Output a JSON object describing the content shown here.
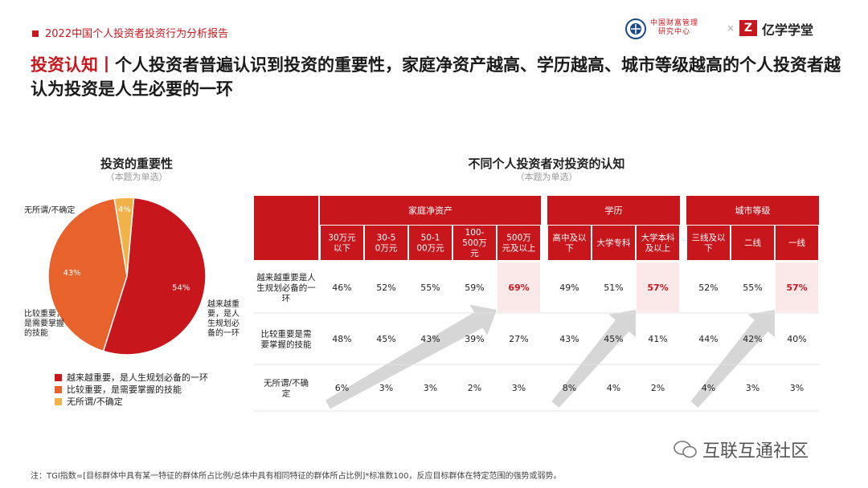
{
  "header": {
    "report_title": "2022中国个人投资者投资行为分析报告",
    "logo1_line1": "中国财富管理",
    "logo1_line2": "研究中心",
    "times": "×",
    "logo2_mark": "Z",
    "logo2_name": "亿学学堂"
  },
  "headline": {
    "tag": "投资认知丨",
    "text": "个人投资者普遍认识到投资的重要性，家庭净资产越高、学历越高、城市等级越高的个人投资者越认为投资是人生必要的一环"
  },
  "pie_section": {
    "title": "投资的重要性",
    "note": "（本题为单选）"
  },
  "table_section": {
    "title": "不同个人投资者对投资的认知",
    "note": "（本题为单选）"
  },
  "colors": {
    "red": "#c8161d",
    "orange": "#e8622c",
    "yellow": "#f2b24a",
    "highlight_bg": "#fbe9ea",
    "arrow": "#cfcfcf"
  },
  "chart_data": [
    {
      "type": "pie",
      "title": "投资的重要性",
      "subtitle": "（本题为单选）",
      "slices": [
        {
          "label": "越来越重要，是人生规划必备的一环",
          "short_label": "越来越重要，是人生规划必备的一环",
          "value": 54,
          "display": "54%",
          "color": "#c8161d"
        },
        {
          "label": "比较重要，是需要掌握的技能",
          "short_label": "比较重要，是需要掌握的技能",
          "value": 43,
          "display": "43%",
          "color": "#e8622c"
        },
        {
          "label": "无所谓/不确定",
          "short_label": "无所谓/不确定",
          "value": 4,
          "display": "4%",
          "color": "#f2b24a"
        }
      ]
    },
    {
      "type": "table",
      "title": "不同个人投资者对投资的认知",
      "subtitle": "（本题为单选）",
      "groups": [
        {
          "name": "家庭净资产",
          "columns": [
            "30万元以下",
            "30-50万元",
            "50-100万元",
            "100-500万元",
            "500万元及以上"
          ]
        },
        {
          "name": "学历",
          "columns": [
            "高中及以下",
            "大学专科",
            "大学本科及以上"
          ]
        },
        {
          "name": "城市等级",
          "columns": [
            "三线及以下",
            "二线",
            "一线"
          ]
        }
      ],
      "rows": [
        {
          "label": "越来越重要是人生规划必备的一环",
          "values": [
            [
              "46%",
              "52%",
              "55%",
              "59%",
              "69%"
            ],
            [
              "49%",
              "51%",
              "57%"
            ],
            [
              "52%",
              "55%",
              "57%"
            ]
          ],
          "highlight_last": true
        },
        {
          "label": "比较重要是需要掌握的技能",
          "values": [
            [
              "48%",
              "45%",
              "43%",
              "39%",
              "27%"
            ],
            [
              "43%",
              "45%",
              "41%"
            ],
            [
              "44%",
              "42%",
              "40%"
            ]
          ],
          "highlight_last": false
        },
        {
          "label": "无所谓/不确定",
          "values": [
            [
              "6%",
              "3%",
              "3%",
              "2%",
              "3%"
            ],
            [
              "8%",
              "4%",
              "2%"
            ],
            [
              "4%",
              "3%",
              "3%"
            ]
          ],
          "highlight_last": false
        }
      ]
    }
  ],
  "footnote": "注：TGI指数=[目标群体中具有某一特征的群体所占比例/总体中具有相同特征的群体所占比例]*标准数100，反应目标群体在特定范围的强势或弱势。",
  "watermark": "互联互通社区"
}
